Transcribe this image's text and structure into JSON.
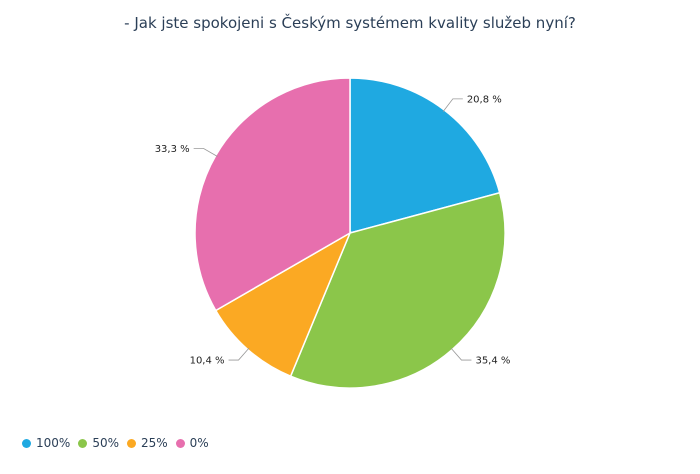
{
  "chart_data": {
    "type": "pie",
    "title": "- Jak jste spokojeni s Českým systémem kvality služeb nyní?",
    "categories": [
      "100%",
      "50%",
      "25%",
      "0%"
    ],
    "values": [
      20.8,
      35.4,
      10.4,
      33.3
    ],
    "labels": [
      "20,8 %",
      "35,4 %",
      "10,4 %",
      "33,3 %"
    ],
    "colors": [
      "#1fa9e1",
      "#8bc64a",
      "#fba923",
      "#e76fae"
    ],
    "legend_position": "bottom-left"
  }
}
